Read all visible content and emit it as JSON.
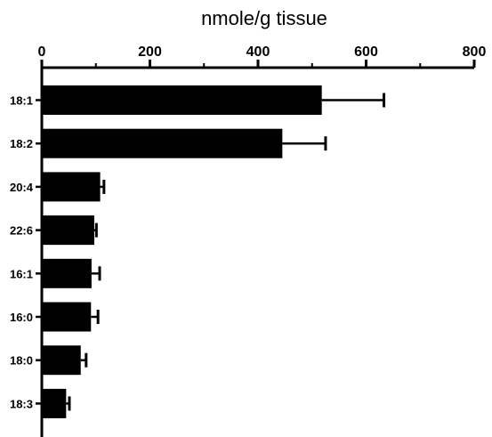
{
  "chart_data": {
    "type": "bar",
    "orientation": "horizontal",
    "categories": [
      "18:1",
      "18:2",
      "20:4",
      "22:6",
      "16:1",
      "16:0",
      "18:0",
      "18:3"
    ],
    "values": [
      518,
      445,
      108,
      97,
      92,
      91,
      72,
      45
    ],
    "errors": [
      115,
      80,
      7,
      4,
      15,
      13,
      10,
      6
    ],
    "title": "",
    "xlabel": "nmole/g tissue",
    "ylabel": "",
    "xlim": [
      0,
      800
    ],
    "xticks": [
      "0",
      "200",
      "400",
      "600",
      "800"
    ],
    "x_axis_position": "top",
    "grid": false,
    "legend": "none",
    "bar_color": "#000000"
  }
}
